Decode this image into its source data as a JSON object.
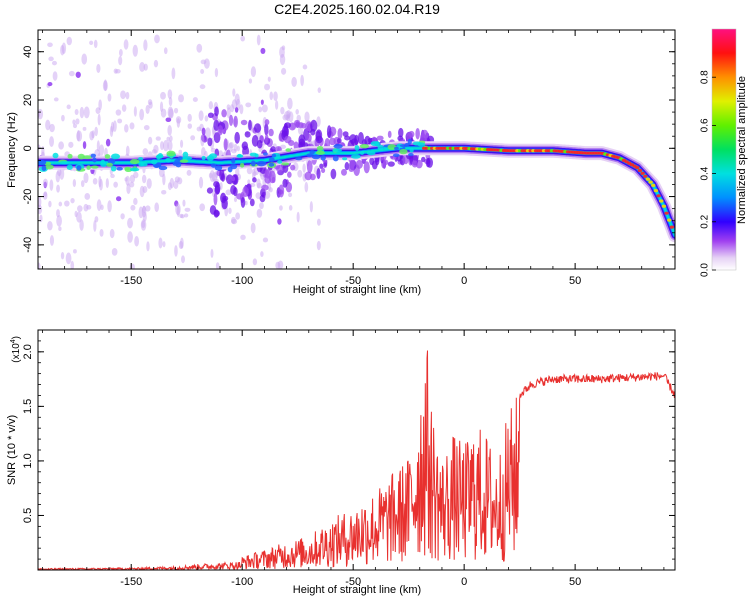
{
  "title": "C2E4.2025.160.02.04.R19",
  "colorbar": {
    "label": "Normalized spectral amplitude",
    "ticks": [
      "0.0",
      "0.2",
      "0.4",
      "0.6",
      "0.8"
    ],
    "tick_values": [
      0.0,
      0.2,
      0.4,
      0.6,
      0.8
    ],
    "range": [
      0,
      1
    ]
  },
  "chart_data": [
    {
      "type": "heatmap",
      "xlabel": "Height of straight line (km)",
      "ylabel": "Frequency (Hz)",
      "xlim": [
        -192,
        95
      ],
      "ylim": [
        -50,
        49
      ],
      "xticks": [
        "-150",
        "-100",
        "-50",
        "0",
        "50"
      ],
      "xtick_values": [
        -150,
        -100,
        -50,
        0,
        50
      ],
      "yticks": [
        "-40",
        "-20",
        "0",
        "20",
        "40"
      ],
      "ytick_values": [
        -40,
        -20,
        0,
        20,
        40
      ],
      "ridge": {
        "x": [
          -192,
          -170,
          -150,
          -130,
          -110,
          -90,
          -70,
          -50,
          -30,
          -20,
          0,
          20,
          40,
          55,
          62,
          70,
          78,
          85,
          90,
          95
        ],
        "y": [
          -6,
          -6,
          -6,
          -5,
          -6,
          -5,
          -2,
          -2,
          0,
          0,
          0,
          -1,
          -1,
          -2,
          -2,
          -4,
          -8,
          -15,
          -24,
          -36
        ]
      },
      "noise_region_x": [
        -192,
        -65
      ],
      "noise_region_y": [
        -50,
        47
      ]
    },
    {
      "type": "line",
      "xlabel": "Height of straight line (km)",
      "ylabel": "SNR (10 * v/v)",
      "ylabel_multiplier": "(x10",
      "ylabel_exponent": "4",
      "ylabel_suffix": ")",
      "xlim": [
        -192,
        95
      ],
      "ylim": [
        0,
        2.2
      ],
      "xticks": [
        "-150",
        "-100",
        "-50",
        "0",
        "50"
      ],
      "xtick_values": [
        -150,
        -100,
        -50,
        0,
        50
      ],
      "yticks": [
        "0.5",
        "1.0",
        "1.5",
        "2.0"
      ],
      "ytick_values": [
        0.5,
        1.0,
        1.5,
        2.0
      ],
      "color": "#e8302e",
      "series": [
        {
          "x": [
            -192,
            -150,
            -130,
            -120,
            -100,
            -90,
            -80,
            -70,
            -60,
            -50,
            -45,
            -40,
            -35,
            -30,
            -25,
            -20,
            -17,
            -15,
            -10,
            -5,
            0,
            5,
            10,
            15,
            20,
            25,
            30,
            40,
            50,
            60,
            70,
            80,
            90,
            95
          ],
          "y": [
            0.02,
            0.03,
            0.05,
            0.08,
            0.12,
            0.18,
            0.25,
            0.3,
            0.45,
            0.55,
            0.65,
            0.7,
            0.8,
            0.9,
            1.0,
            1.6,
            2.1,
            1.5,
            1.0,
            1.2,
            1.1,
            1.3,
            1.2,
            1.0,
            1.4,
            1.6,
            1.7,
            1.75,
            1.75,
            1.75,
            1.76,
            1.77,
            1.78,
            1.6
          ]
        }
      ]
    }
  ]
}
